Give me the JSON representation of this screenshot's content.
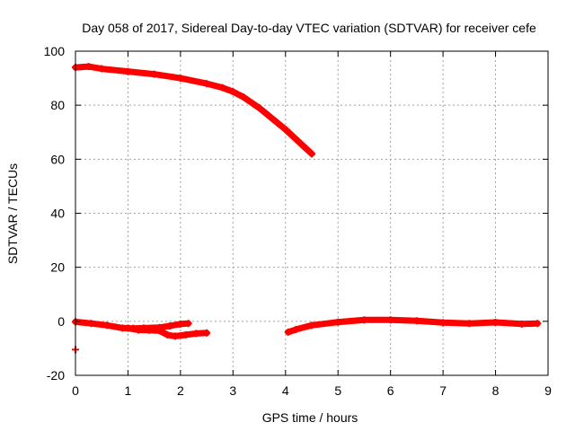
{
  "chart_data": {
    "type": "scatter",
    "title": "Day 058 of 2017, Sidereal Day-to-day VTEC variation (SDTVAR) for receiver cefe",
    "xlabel": "GPS time / hours",
    "ylabel": "SDTVAR / TECUs",
    "xlim": [
      0,
      9
    ],
    "ylim": [
      -20,
      100
    ],
    "xticks": [
      "0",
      "1",
      "2",
      "3",
      "4",
      "5",
      "6",
      "7",
      "8",
      "9"
    ],
    "yticks": [
      "-20",
      "0",
      "20",
      "40",
      "60",
      "80",
      "100"
    ],
    "grid": true,
    "marker_color": "#ff0000",
    "series": [
      {
        "x": [
          0.0,
          0.25,
          0.5,
          1.0,
          1.5,
          2.0,
          2.5,
          2.8,
          3.0,
          3.2,
          3.5,
          4.0,
          4.5
        ],
        "y": [
          94,
          94.3,
          93.5,
          92.5,
          91.5,
          90,
          88,
          86.5,
          85,
          83,
          79,
          71,
          62
        ]
      },
      {
        "x": [
          0.0,
          0.3,
          0.6,
          0.9,
          1.1,
          1.3,
          1.6,
          1.8,
          2.0,
          2.15
        ],
        "y": [
          -0.2,
          -0.8,
          -1.5,
          -2.5,
          -2.6,
          -2.5,
          -2.3,
          -1.7,
          -1.0,
          -0.8
        ]
      },
      {
        "x": [
          1.0,
          1.2,
          1.4,
          1.6,
          1.75,
          1.9,
          2.1,
          2.3,
          2.5
        ],
        "y": [
          -2.5,
          -3.2,
          -3.3,
          -3.5,
          -5.0,
          -5.5,
          -5.0,
          -4.5,
          -4.3
        ]
      },
      {
        "x": [
          4.05,
          4.2,
          4.5,
          5.0,
          5.5,
          6.0,
          6.5,
          7.0,
          7.5,
          8.0,
          8.5,
          8.8
        ],
        "y": [
          -4,
          -3,
          -1.5,
          -0.3,
          0.5,
          0.5,
          0.2,
          -0.5,
          -0.8,
          -0.4,
          -1.0,
          -0.8
        ]
      },
      {
        "x": [
          0.0
        ],
        "y": [
          -10.5
        ]
      }
    ]
  }
}
